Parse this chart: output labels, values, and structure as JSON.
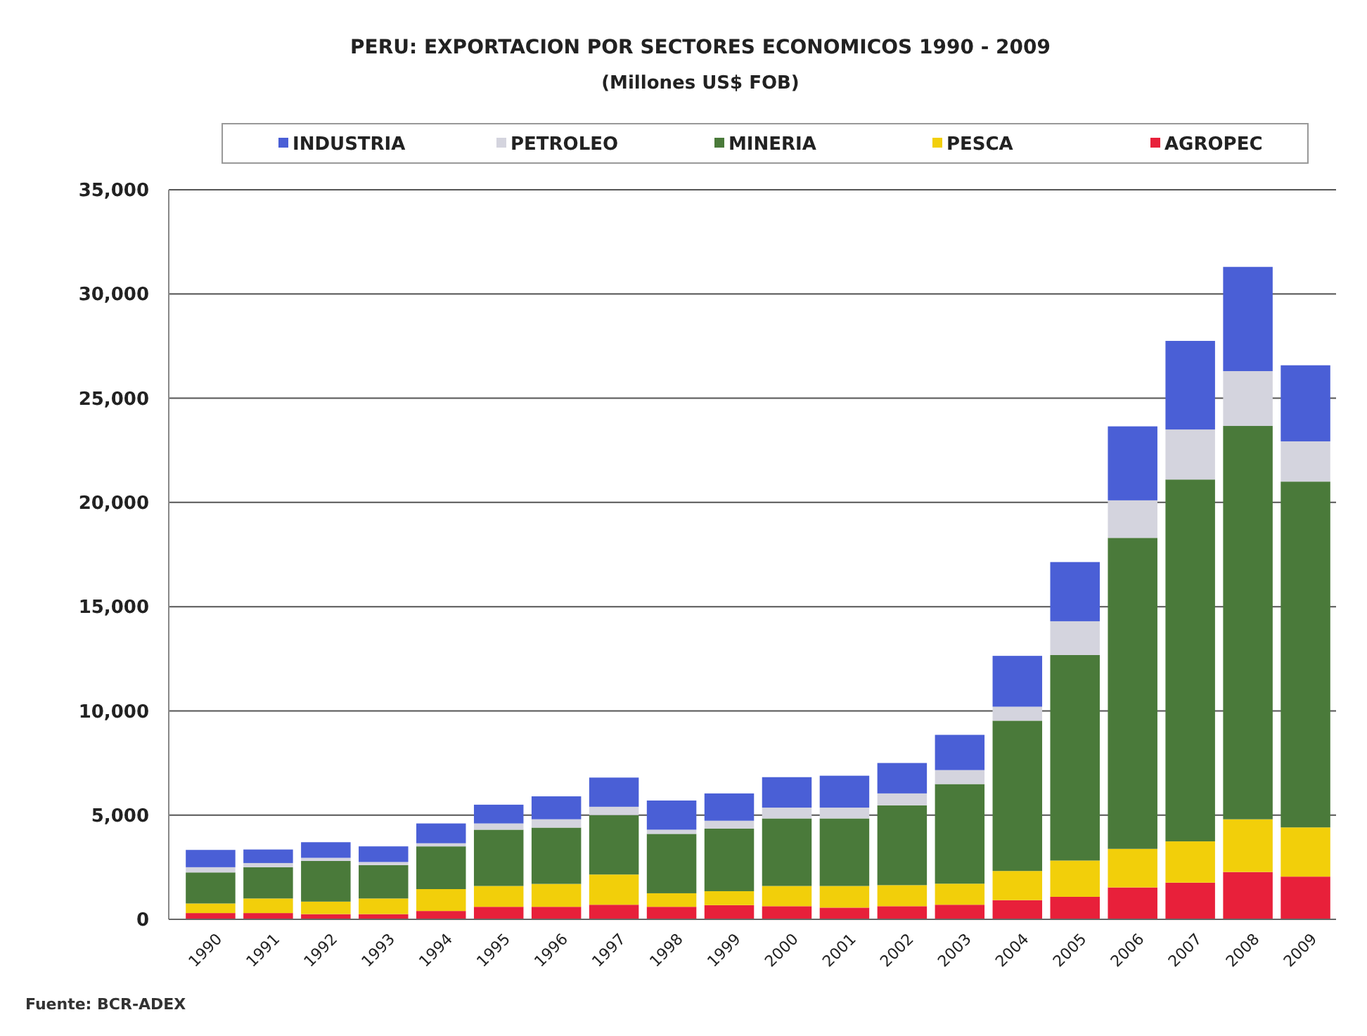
{
  "chart_data": {
    "type": "bar",
    "title": "PERU: EXPORTACION POR SECTORES ECONOMICOS 1990 - 2009",
    "subtitle": "(Millones US$ FOB)",
    "stacked": true,
    "grid": "y",
    "legend": "top",
    "categories": [
      "1990",
      "1991",
      "1992",
      "1993",
      "1994",
      "1995",
      "1996",
      "1997",
      "1998",
      "1999",
      "2000",
      "2001",
      "2002",
      "2003",
      "2004",
      "2005",
      "2006",
      "2007",
      "2008",
      "2009"
    ],
    "ylim": [
      0,
      35000
    ],
    "yticks": [
      {
        "value": 0,
        "label": "0"
      },
      {
        "value": 5000,
        "label": "5,000"
      },
      {
        "value": 10000,
        "label": "10,000"
      },
      {
        "value": 15000,
        "label": "15,000"
      },
      {
        "value": 20000,
        "label": "20,000"
      },
      {
        "value": 25000,
        "label": "25,000"
      },
      {
        "value": 30000,
        "label": "30,000"
      },
      {
        "value": 35000,
        "label": "35,000"
      }
    ],
    "series": [
      {
        "name": "AGROPEC",
        "color": "#e8203a",
        "values": [
          300,
          300,
          250,
          250,
          400,
          600,
          600,
          700,
          600,
          680,
          630,
          560,
          630,
          700,
          920,
          1080,
          1530,
          1760,
          2270,
          2050
        ]
      },
      {
        "name": "PESCA",
        "color": "#f2cf0a",
        "values": [
          460,
          700,
          600,
          750,
          1050,
          1000,
          1100,
          1450,
          650,
          670,
          970,
          1040,
          1010,
          1010,
          1400,
          1740,
          1850,
          1980,
          2530,
          2360
        ]
      },
      {
        "name": "MINERIA",
        "color": "#4a7a3a",
        "values": [
          1490,
          1500,
          1950,
          1600,
          2050,
          2700,
          2700,
          2850,
          2850,
          3000,
          3240,
          3240,
          3830,
          4780,
          7210,
          9860,
          14920,
          17360,
          18870,
          16590
        ]
      },
      {
        "name": "PETROLEO",
        "color": "#d4d4de",
        "values": [
          250,
          200,
          150,
          150,
          150,
          300,
          400,
          400,
          200,
          380,
          520,
          520,
          570,
          670,
          670,
          1620,
          1800,
          2400,
          2630,
          1930
        ]
      },
      {
        "name": "INDUSTRIA",
        "color": "#4a5fd6",
        "values": [
          830,
          650,
          750,
          750,
          950,
          900,
          1100,
          1400,
          1400,
          1310,
          1460,
          1530,
          1460,
          1690,
          2440,
          2840,
          3550,
          4250,
          5000,
          3650
        ]
      }
    ],
    "annotations": [
      "Fuente: BCR-ADEX"
    ]
  }
}
